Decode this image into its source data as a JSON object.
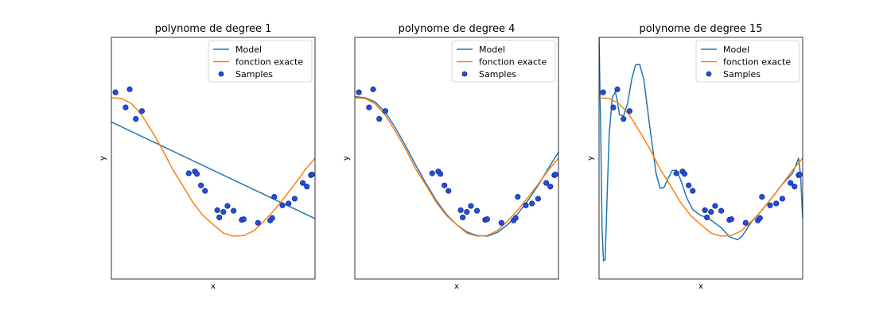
{
  "chart_data": [
    {
      "type": "line",
      "title": "polynome de degree 1",
      "xlabel": "x",
      "ylabel": "y",
      "xlim": [
        0,
        1
      ],
      "ylim": [
        -2,
        2
      ],
      "legend": {
        "placement": "top-right",
        "entries": [
          "Model",
          "fonction exacte",
          "Samples"
        ]
      },
      "series": [
        {
          "name": "Model",
          "color": "#1f77b4",
          "x": [
            0,
            1
          ],
          "y": [
            0.6,
            -1.0
          ]
        },
        {
          "name": "fonction exacte",
          "color": "#ff7f0e",
          "x": [
            0,
            0.05,
            0.1,
            0.15,
            0.2,
            0.25,
            0.3,
            0.35,
            0.4,
            0.45,
            0.5,
            0.55,
            0.6,
            0.65,
            0.7,
            0.75,
            0.8,
            0.85,
            0.9,
            0.95,
            1.0
          ],
          "y": [
            1.0,
            0.99,
            0.9,
            0.71,
            0.44,
            0.15,
            -0.18,
            -0.45,
            -0.73,
            -0.95,
            -1.1,
            -1.24,
            -1.29,
            -1.28,
            -1.2,
            -1.04,
            -0.86,
            -0.65,
            -0.43,
            -0.2,
            0.0
          ]
        }
      ],
      "samples": {
        "name": "Samples",
        "color": "#1f4fe0",
        "x": [
          0.02,
          0.07,
          0.09,
          0.12,
          0.15,
          0.38,
          0.41,
          0.42,
          0.44,
          0.46,
          0.52,
          0.53,
          0.55,
          0.57,
          0.6,
          0.64,
          0.65,
          0.72,
          0.78,
          0.79,
          0.8,
          0.84,
          0.87,
          0.9,
          0.94,
          0.96,
          0.98,
          0.985
        ],
        "y": [
          1.09,
          0.84,
          1.14,
          0.65,
          0.78,
          -0.25,
          -0.22,
          -0.26,
          -0.45,
          -0.54,
          -0.86,
          -0.98,
          -0.89,
          -0.79,
          -0.87,
          -1.02,
          -1.01,
          -1.07,
          -1.03,
          -0.99,
          -0.64,
          -0.78,
          -0.75,
          -0.67,
          -0.41,
          -0.47,
          -0.28,
          -0.27
        ]
      }
    },
    {
      "type": "line",
      "title": "polynome de degree 4",
      "xlabel": "x",
      "ylabel": "y",
      "xlim": [
        0,
        1
      ],
      "ylim": [
        -2,
        2
      ],
      "legend": {
        "placement": "top-right",
        "entries": [
          "Model",
          "fonction exacte",
          "Samples"
        ]
      },
      "series": [
        {
          "name": "Model",
          "color": "#1f77b4",
          "x": [
            0,
            0.05,
            0.1,
            0.15,
            0.2,
            0.25,
            0.3,
            0.35,
            0.4,
            0.45,
            0.5,
            0.55,
            0.6,
            0.65,
            0.7,
            0.75,
            0.8,
            0.85,
            0.9,
            0.95,
            1.0
          ],
          "y": [
            1.02,
            1.0,
            0.93,
            0.76,
            0.5,
            0.2,
            -0.12,
            -0.42,
            -0.7,
            -0.93,
            -1.1,
            -1.22,
            -1.28,
            -1.29,
            -1.23,
            -1.1,
            -0.92,
            -0.7,
            -0.45,
            -0.17,
            0.1
          ]
        },
        {
          "name": "fonction exacte",
          "color": "#ff7f0e",
          "x": [
            0,
            0.05,
            0.1,
            0.15,
            0.2,
            0.25,
            0.3,
            0.35,
            0.4,
            0.45,
            0.5,
            0.55,
            0.6,
            0.65,
            0.7,
            0.75,
            0.8,
            0.85,
            0.9,
            0.95,
            1.0
          ],
          "y": [
            1.0,
            0.99,
            0.9,
            0.71,
            0.44,
            0.15,
            -0.18,
            -0.45,
            -0.73,
            -0.95,
            -1.1,
            -1.24,
            -1.29,
            -1.28,
            -1.2,
            -1.04,
            -0.86,
            -0.65,
            -0.43,
            -0.2,
            0.0
          ]
        }
      ],
      "samples": {
        "name": "Samples",
        "color": "#1f4fe0",
        "x": [
          0.02,
          0.07,
          0.09,
          0.12,
          0.15,
          0.38,
          0.41,
          0.42,
          0.44,
          0.46,
          0.52,
          0.53,
          0.55,
          0.57,
          0.6,
          0.64,
          0.65,
          0.72,
          0.78,
          0.79,
          0.8,
          0.84,
          0.87,
          0.9,
          0.94,
          0.96,
          0.98,
          0.985
        ],
        "y": [
          1.09,
          0.84,
          1.14,
          0.65,
          0.78,
          -0.25,
          -0.22,
          -0.26,
          -0.45,
          -0.54,
          -0.86,
          -0.98,
          -0.89,
          -0.79,
          -0.87,
          -1.02,
          -1.01,
          -1.07,
          -1.03,
          -0.99,
          -0.64,
          -0.78,
          -0.75,
          -0.67,
          -0.41,
          -0.47,
          -0.28,
          -0.27
        ]
      }
    },
    {
      "type": "line",
      "title": "polynome de degree 15",
      "xlabel": "x",
      "ylabel": "y",
      "xlim": [
        0,
        1
      ],
      "ylim": [
        -2,
        2
      ],
      "legend": {
        "placement": "top-right",
        "entries": [
          "Model",
          "fonction exacte",
          "Samples"
        ]
      },
      "series": [
        {
          "name": "Model",
          "color": "#1f77b4",
          "x": [
            0.0,
            0.008,
            0.015,
            0.022,
            0.03,
            0.04,
            0.05,
            0.065,
            0.08,
            0.09,
            0.1,
            0.12,
            0.14,
            0.16,
            0.18,
            0.2,
            0.22,
            0.25,
            0.28,
            0.3,
            0.32,
            0.34,
            0.36,
            0.38,
            0.4,
            0.43,
            0.46,
            0.5,
            0.53,
            0.56,
            0.6,
            0.64,
            0.68,
            0.7,
            0.72,
            0.75,
            0.8,
            0.85,
            0.9,
            0.95,
            0.98,
            0.99,
            1.0
          ],
          "y": [
            2.0,
            0.5,
            -1.2,
            -1.7,
            -1.68,
            -0.6,
            0.4,
            1.0,
            1.1,
            0.95,
            0.72,
            0.7,
            0.9,
            1.3,
            1.55,
            1.55,
            1.3,
            0.5,
            -0.25,
            -0.5,
            -0.48,
            -0.33,
            -0.2,
            -0.2,
            -0.35,
            -0.65,
            -0.85,
            -0.95,
            -0.98,
            -1.05,
            -1.15,
            -1.3,
            -1.35,
            -1.3,
            -1.2,
            -1.05,
            -0.86,
            -0.65,
            -0.43,
            -0.25,
            0.0,
            -0.3,
            -1.0
          ]
        },
        {
          "name": "fonction exacte",
          "color": "#ff7f0e",
          "x": [
            0,
            0.05,
            0.1,
            0.15,
            0.2,
            0.25,
            0.3,
            0.35,
            0.4,
            0.45,
            0.5,
            0.55,
            0.6,
            0.65,
            0.7,
            0.75,
            0.8,
            0.85,
            0.9,
            0.95,
            1.0
          ],
          "y": [
            1.0,
            0.99,
            0.9,
            0.71,
            0.44,
            0.15,
            -0.18,
            -0.45,
            -0.73,
            -0.95,
            -1.1,
            -1.24,
            -1.29,
            -1.28,
            -1.2,
            -1.04,
            -0.86,
            -0.65,
            -0.43,
            -0.2,
            0.0
          ]
        }
      ],
      "samples": {
        "name": "Samples",
        "color": "#1f4fe0",
        "x": [
          0.02,
          0.07,
          0.09,
          0.12,
          0.15,
          0.38,
          0.41,
          0.42,
          0.44,
          0.46,
          0.52,
          0.53,
          0.55,
          0.57,
          0.6,
          0.64,
          0.65,
          0.72,
          0.78,
          0.79,
          0.8,
          0.84,
          0.87,
          0.9,
          0.94,
          0.96,
          0.98,
          0.985
        ],
        "y": [
          1.09,
          0.84,
          1.14,
          0.65,
          0.78,
          -0.25,
          -0.22,
          -0.26,
          -0.45,
          -0.54,
          -0.86,
          -0.98,
          -0.89,
          -0.79,
          -0.87,
          -1.02,
          -1.01,
          -1.07,
          -1.03,
          -0.99,
          -0.64,
          -0.78,
          -0.75,
          -0.67,
          -0.41,
          -0.47,
          -0.28,
          -0.27
        ]
      }
    }
  ]
}
